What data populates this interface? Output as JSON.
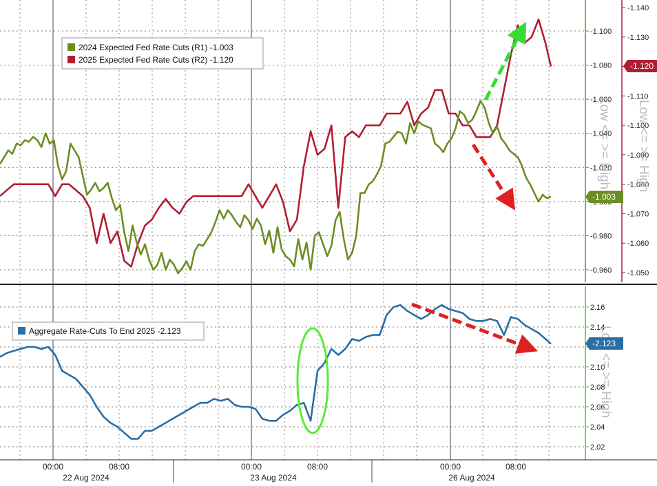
{
  "chart_data": [
    {
      "type": "line",
      "legend_placement": "top-left",
      "grid": true,
      "x_ticks": [
        "00:00",
        "08:00",
        "00:00",
        "08:00",
        "00:00",
        "08:00"
      ],
      "date_labels": [
        "22 Aug 2024",
        "23 Aug 2024",
        "26 Aug 2024"
      ],
      "left_axis": {
        "ticks": [
          "-0.960",
          "-0.980",
          "-1.000",
          "-1.020",
          "-1.040",
          "-1.060",
          "-1.080",
          "-1.100"
        ],
        "ylim": [
          -0.952,
          -1.114
        ],
        "note": "Low <= >= High"
      },
      "right_axis": {
        "ticks": [
          "-1.050",
          "-1.060",
          "-1.070",
          "-1.080",
          "-1.090",
          "-1.100",
          "-1.110",
          "-1.120",
          "-1.130",
          "-1.140"
        ],
        "ylim": [
          -1.0463,
          -1.1424
        ],
        "note": "Low <= >= High"
      },
      "series": [
        {
          "name": "2024 Expected Fed Rate Cuts (R1) -1.003",
          "axis": "left",
          "color": "#6b8e23",
          "last_label": "-1.003",
          "x": [
            0,
            0.006,
            0.012,
            0.018,
            0.024,
            0.03,
            0.036,
            0.042,
            0.048,
            0.054,
            0.06,
            0.066,
            0.072,
            0.078,
            0.084,
            0.09,
            0.096,
            0.102,
            0.108,
            0.114,
            0.12,
            0.126,
            0.132,
            0.138,
            0.144,
            0.15,
            0.156,
            0.162,
            0.168,
            0.174,
            0.18,
            0.186,
            0.192,
            0.198,
            0.204,
            0.21,
            0.216,
            0.222,
            0.228,
            0.234,
            0.24,
            0.246,
            0.252,
            0.258,
            0.264,
            0.27,
            0.276,
            0.282,
            0.288,
            0.294,
            0.3,
            0.306,
            0.312,
            0.318,
            0.324,
            0.33,
            0.336,
            0.342,
            0.348,
            0.354,
            0.36,
            0.366,
            0.372,
            0.378,
            0.384,
            0.39,
            0.396,
            0.402,
            0.408,
            0.414,
            0.42,
            0.426,
            0.432,
            0.438,
            0.444,
            0.45,
            0.456,
            0.462,
            0.468,
            0.474,
            0.48,
            0.486,
            0.492,
            0.498,
            0.504,
            0.51,
            0.516,
            0.522,
            0.528,
            0.534,
            0.54,
            0.546,
            0.552,
            0.558,
            0.564,
            0.57,
            0.576,
            0.582,
            0.588,
            0.594,
            0.6,
            0.606,
            0.612,
            0.618,
            0.624,
            0.63,
            0.636,
            0.642,
            0.648,
            0.654,
            0.66,
            0.666,
            0.672,
            0.678,
            0.684,
            0.69,
            0.696,
            0.702,
            0.708,
            0.714,
            0.72,
            0.726,
            0.732,
            0.738,
            0.744,
            0.75,
            0.756,
            0.762,
            0.768,
            0.774,
            0.78,
            0.786,
            0.792,
            0.798
          ],
          "y": [
            -1.022,
            -1.026,
            -1.03,
            -1.028,
            -1.034,
            -1.033,
            -1.036,
            -1.035,
            -1.038,
            -1.036,
            -1.032,
            -1.04,
            -1.034,
            -1.036,
            -1.021,
            -1.013,
            -1.018,
            -1.034,
            -1.03,
            -1.026,
            -1.015,
            -1.004,
            -1.007,
            -1.011,
            -1.006,
            -1.008,
            -1.011,
            -1.002,
            -0.995,
            -0.998,
            -0.982,
            -0.971,
            -0.986,
            -0.976,
            -0.969,
            -0.975,
            -0.966,
            -0.96,
            -0.963,
            -0.97,
            -0.96,
            -0.966,
            -0.963,
            -0.958,
            -0.961,
            -0.965,
            -0.96,
            -0.971,
            -0.975,
            -0.974,
            -0.978,
            -0.982,
            -0.988,
            -0.995,
            -0.99,
            -0.995,
            -0.992,
            -0.988,
            -0.985,
            -0.992,
            -0.989,
            -0.984,
            -0.99,
            -0.986,
            -0.975,
            -0.983,
            -0.97,
            -0.985,
            -0.972,
            -0.968,
            -0.966,
            -0.962,
            -0.978,
            -0.966,
            -0.976,
            -0.96,
            -0.98,
            -0.982,
            -0.975,
            -0.968,
            -0.974,
            -0.989,
            -0.994,
            -0.978,
            -0.966,
            -0.97,
            -0.98,
            -1.005,
            -1.005,
            -1.01,
            -1.012,
            -1.016,
            -1.021,
            -1.034,
            -1.035,
            -1.038,
            -1.041,
            -1.04,
            -1.034,
            -1.046,
            -1.04,
            -1.047,
            -1.045,
            -1.044,
            -1.043,
            -1.034,
            -1.032,
            -1.029,
            -1.034,
            -1.037,
            -1.043,
            -1.053,
            -1.051,
            -1.046,
            -1.048,
            -1.053,
            -1.059,
            -1.055,
            -1.046,
            -1.04,
            -1.044,
            -1.037,
            -1.034,
            -1.03,
            -1.028,
            -1.026,
            -1.021,
            -1.014,
            -1.01,
            -1.005,
            -1.0,
            -1.004,
            -1.002,
            -1.003
          ],
          "_smoothing_note": "values estimated from plot"
        },
        {
          "name": "2025 Expected Fed Rate Cuts (R2) -1.120",
          "axis": "right",
          "color": "#b01e32",
          "last_label": "-1.120",
          "x": [
            0,
            0.01,
            0.02,
            0.03,
            0.04,
            0.05,
            0.06,
            0.07,
            0.08,
            0.09,
            0.1,
            0.11,
            0.12,
            0.13,
            0.14,
            0.15,
            0.16,
            0.17,
            0.18,
            0.19,
            0.2,
            0.21,
            0.22,
            0.23,
            0.24,
            0.25,
            0.26,
            0.27,
            0.28,
            0.29,
            0.3,
            0.31,
            0.32,
            0.33,
            0.34,
            0.35,
            0.36,
            0.37,
            0.38,
            0.39,
            0.4,
            0.41,
            0.42,
            0.43,
            0.44,
            0.45,
            0.46,
            0.47,
            0.48,
            0.49,
            0.5,
            0.51,
            0.52,
            0.53,
            0.54,
            0.55,
            0.56,
            0.57,
            0.58,
            0.59,
            0.6,
            0.61,
            0.62,
            0.63,
            0.64,
            0.65,
            0.66,
            0.67,
            0.68,
            0.69,
            0.7,
            0.71,
            0.72,
            0.73,
            0.74,
            0.75,
            0.76,
            0.77,
            0.78,
            0.79,
            0.798
          ],
          "y": [
            -1.076,
            -1.078,
            -1.08,
            -1.08,
            -1.08,
            -1.08,
            -1.08,
            -1.08,
            -1.076,
            -1.08,
            -1.08,
            -1.078,
            -1.076,
            -1.072,
            -1.06,
            -1.07,
            -1.06,
            -1.064,
            -1.054,
            -1.052,
            -1.06,
            -1.066,
            -1.068,
            -1.072,
            -1.075,
            -1.072,
            -1.07,
            -1.074,
            -1.076,
            -1.076,
            -1.076,
            -1.076,
            -1.076,
            -1.076,
            -1.076,
            -1.076,
            -1.08,
            -1.076,
            -1.072,
            -1.076,
            -1.08,
            -1.074,
            -1.064,
            -1.068,
            -1.086,
            -1.098,
            -1.09,
            -1.092,
            -1.1,
            -1.072,
            -1.096,
            -1.098,
            -1.096,
            -1.1,
            -1.1,
            -1.1,
            -1.104,
            -1.104,
            -1.104,
            -1.108,
            -1.1,
            -1.104,
            -1.106,
            -1.112,
            -1.112,
            -1.104,
            -1.104,
            -1.1,
            -1.1,
            -1.096,
            -1.096,
            -1.096,
            -1.1,
            -1.112,
            -1.124,
            -1.134,
            -1.128,
            -1.13,
            -1.136,
            -1.128,
            -1.12
          ]
        }
      ]
    },
    {
      "type": "line",
      "legend_placement": "top-left",
      "grid": true,
      "right_axis": {
        "ticks": [
          "2.02",
          "2.04",
          "2.06",
          "2.08",
          "2.10",
          "2.12",
          "2.14",
          "2.16"
        ],
        "ylim": [
          2.012,
          2.174
        ],
        "note": "Low <= >= High"
      },
      "series": [
        {
          "name": "Aggregate Rate-Cuts To End 2025 -2.123",
          "axis": "right",
          "color": "#2a6ea6",
          "last_label": "-2.123",
          "x": [
            0,
            0.01,
            0.02,
            0.03,
            0.04,
            0.05,
            0.06,
            0.07,
            0.08,
            0.09,
            0.1,
            0.11,
            0.12,
            0.13,
            0.14,
            0.15,
            0.16,
            0.17,
            0.18,
            0.19,
            0.2,
            0.21,
            0.22,
            0.23,
            0.24,
            0.25,
            0.26,
            0.27,
            0.28,
            0.29,
            0.3,
            0.31,
            0.32,
            0.33,
            0.34,
            0.35,
            0.36,
            0.37,
            0.38,
            0.39,
            0.4,
            0.41,
            0.42,
            0.43,
            0.44,
            0.45,
            0.46,
            0.47,
            0.48,
            0.49,
            0.5,
            0.51,
            0.52,
            0.53,
            0.54,
            0.55,
            0.56,
            0.57,
            0.58,
            0.59,
            0.6,
            0.61,
            0.62,
            0.63,
            0.64,
            0.65,
            0.66,
            0.67,
            0.68,
            0.69,
            0.7,
            0.71,
            0.72,
            0.73,
            0.74,
            0.75,
            0.76,
            0.77,
            0.78,
            0.79,
            0.798
          ],
          "y": [
            2.11,
            2.114,
            2.116,
            2.118,
            2.12,
            2.12,
            2.118,
            2.12,
            2.112,
            2.096,
            2.092,
            2.088,
            2.08,
            2.072,
            2.06,
            2.05,
            2.044,
            2.04,
            2.034,
            2.028,
            2.028,
            2.036,
            2.036,
            2.04,
            2.044,
            2.048,
            2.052,
            2.056,
            2.06,
            2.064,
            2.064,
            2.068,
            2.066,
            2.068,
            2.062,
            2.06,
            2.06,
            2.058,
            2.048,
            2.046,
            2.046,
            2.052,
            2.056,
            2.062,
            2.064,
            2.046,
            2.096,
            2.104,
            2.118,
            2.112,
            2.118,
            2.128,
            2.126,
            2.13,
            2.132,
            2.132,
            2.152,
            2.16,
            2.162,
            2.156,
            2.152,
            2.148,
            2.152,
            2.158,
            2.162,
            2.158,
            2.156,
            2.154,
            2.148,
            2.146,
            2.146,
            2.148,
            2.146,
            2.132,
            2.15,
            2.148,
            2.142,
            2.138,
            2.134,
            2.128,
            2.123
          ]
        }
      ]
    }
  ]
}
